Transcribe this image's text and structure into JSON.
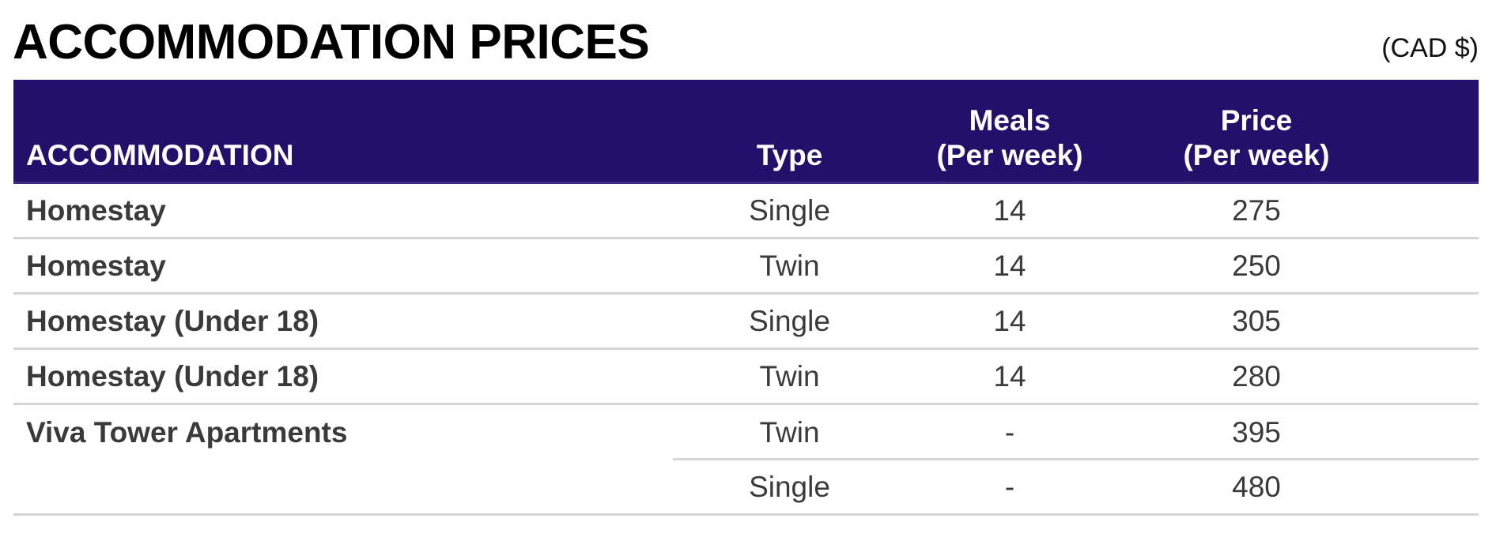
{
  "heading": {
    "title": "ACCOMMODATION PRICES",
    "currency": "(CAD $)"
  },
  "table": {
    "headers": {
      "accommodation": "ACCOMMODATION",
      "type": "Type",
      "meals_line1": "Meals",
      "meals_line2": "(Per week)",
      "price_line1": "Price",
      "price_line2": "(Per week)"
    },
    "rows": [
      {
        "accommodation": "Homestay",
        "type": "Single",
        "meals": "14",
        "price": "275"
      },
      {
        "accommodation": "Homestay",
        "type": "Twin",
        "meals": "14",
        "price": "250"
      },
      {
        "accommodation": "Homestay (Under 18)",
        "type": "Single",
        "meals": "14",
        "price": "305"
      },
      {
        "accommodation": "Homestay (Under 18)",
        "type": "Twin",
        "meals": "14",
        "price": "280"
      },
      {
        "accommodation": "Viva Tower Apartments",
        "type": "Twin",
        "meals": "-",
        "price": "395"
      },
      {
        "accommodation": "",
        "type": "Single",
        "meals": "-",
        "price": "480"
      }
    ]
  },
  "colors": {
    "header_background": "#22106b",
    "header_text": "#ffffff",
    "row_divider": "#d5d5d5"
  }
}
